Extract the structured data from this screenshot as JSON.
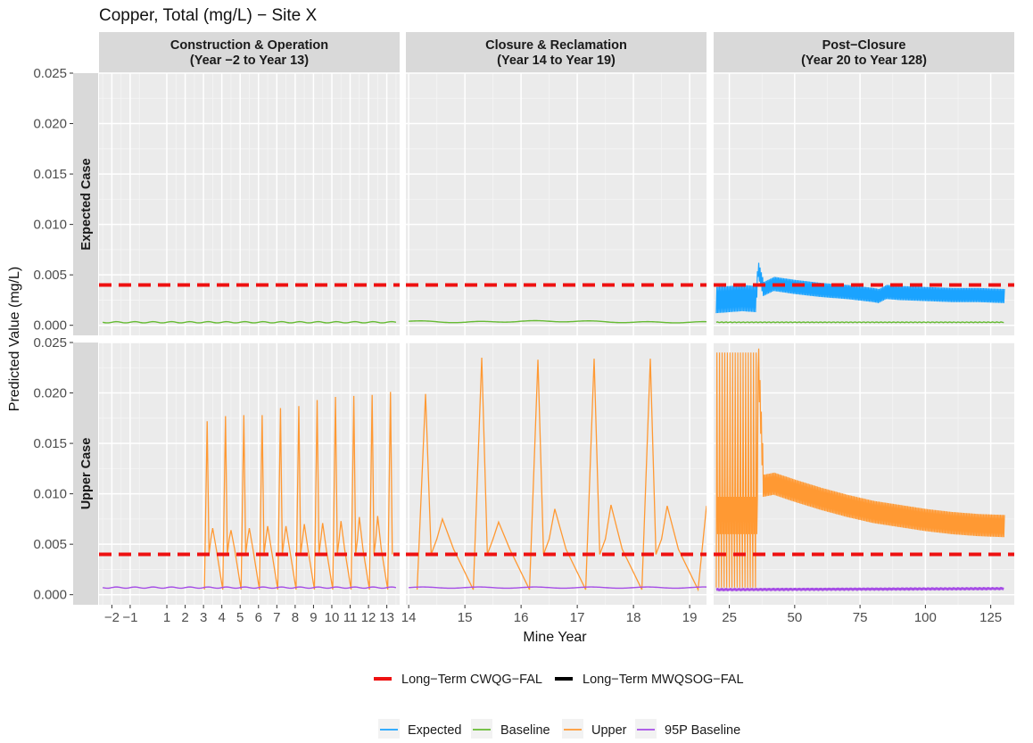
{
  "chart_data": {
    "type": "line",
    "title": "Copper, Total (mg/L) − Site X",
    "xlabel": "Mine Year",
    "ylabel": "Predicted Value (mg/L)",
    "ylim": [
      -0.001,
      0.025
    ],
    "yticks": [
      0.0,
      0.005,
      0.01,
      0.015,
      0.02,
      0.025
    ],
    "ytick_labels": [
      "0.000",
      "0.005",
      "0.010",
      "0.015",
      "0.020",
      "0.025"
    ],
    "grid": true,
    "legend_position": "bottom",
    "facet_columns": [
      {
        "label": "Construction & Operation\n(Year −2 to Year 13)",
        "xlim": [
          -2.7,
          13.7
        ],
        "ticks": [
          -2,
          -1,
          1,
          2,
          3,
          4,
          5,
          6,
          7,
          8,
          9,
          10,
          11,
          12,
          13
        ],
        "tick_labels": [
          "−2",
          "−1",
          "1",
          "2",
          "3",
          "4",
          "5",
          "6",
          "7",
          "8",
          "9",
          "10",
          "11",
          "12",
          "13"
        ],
        "minor_ticks": [
          -2.5,
          -1.5,
          -0.5,
          1.5,
          2.5,
          3.5,
          4.5,
          5.5,
          6.5,
          7.5,
          8.5,
          9.5,
          10.5,
          11.5,
          12.5,
          13.5
        ]
      },
      {
        "label": "Closure & Reclamation\n(Year 14 to Year 19)",
        "xlim": [
          13.95,
          19.3
        ],
        "ticks": [
          14,
          15,
          16,
          17,
          18,
          19
        ],
        "tick_labels": [
          "14",
          "15",
          "16",
          "17",
          "18",
          "19"
        ],
        "minor_ticks": [
          14.5,
          15.5,
          16.5,
          17.5,
          18.5
        ]
      },
      {
        "label": "Post−Closure\n(Year 20 to Year 128)",
        "xlim": [
          19.0,
          134.0
        ],
        "ticks": [
          25,
          50,
          75,
          100,
          125
        ],
        "tick_labels": [
          "25",
          "50",
          "75",
          "100",
          "125"
        ],
        "minor_ticks": [
          37.5,
          62.5,
          87.5,
          112.5
        ]
      }
    ],
    "facet_rows": [
      "Expected Case",
      "Upper Case"
    ],
    "reference_lines": [
      {
        "name": "Long−Term CWQG−FAL",
        "y": 0.004,
        "color": "#ee1111",
        "style": "dashed"
      },
      {
        "name": "Long−Term MWQSOG−FAL",
        "color": "#000000",
        "style": "solid"
      }
    ],
    "series_meta": [
      {
        "name": "Expected",
        "color": "#1aa3ff"
      },
      {
        "name": "Baseline",
        "color": "#66bb33"
      },
      {
        "name": "Upper",
        "color": "#ff9933"
      },
      {
        "name": "95P Baseline",
        "color": "#a64de6"
      }
    ],
    "series": [
      {
        "name": "Baseline",
        "row": 0,
        "col": 0,
        "x": [
          -2.5,
          -1.5,
          -0.5,
          0.5,
          1.5,
          2.5,
          3.5,
          4.5,
          5.5,
          6.5,
          7.5,
          8.5,
          9.5,
          10.5,
          11.5,
          12.5,
          13.5
        ],
        "y": [
          0.0003,
          0.0003,
          0.0003,
          0.0003,
          0.0003,
          0.0003,
          0.0003,
          0.0003,
          0.0003,
          0.0003,
          0.0003,
          0.0003,
          0.0003,
          0.0003,
          0.0003,
          0.0003,
          0.0003
        ]
      },
      {
        "name": "Baseline",
        "row": 0,
        "col": 1,
        "x": [
          14.0,
          15.0,
          16.0,
          17.0,
          18.0,
          19.0,
          19.3
        ],
        "y": [
          0.0004,
          0.0003,
          0.0004,
          0.0004,
          0.0003,
          0.0003,
          0.0003
        ]
      },
      {
        "name": "Baseline",
        "row": 0,
        "col": 2,
        "x": [
          20,
          130
        ],
        "y": [
          0.0003,
          0.0003
        ]
      },
      {
        "name": "Expected",
        "row": 0,
        "col": 2,
        "x": [
          20,
          30,
          35,
          36,
          38,
          42,
          50,
          60,
          70,
          80,
          82,
          85,
          90,
          100,
          110,
          120,
          130
        ],
        "y": [
          0.0025,
          0.0027,
          0.0026,
          0.0055,
          0.0036,
          0.0041,
          0.0038,
          0.0035,
          0.0033,
          0.003,
          0.0029,
          0.0033,
          0.0032,
          0.0031,
          0.003,
          0.003,
          0.0029
        ]
      },
      {
        "name": "Upper",
        "row": 1,
        "col": 0,
        "x": [
          3.2,
          3.5,
          4.2,
          4.5,
          5.2,
          5.5,
          6.2,
          6.5,
          7.2,
          7.5,
          8.2,
          8.5,
          9.2,
          9.5,
          10.2,
          10.5,
          11.2,
          11.5,
          12.2,
          12.5,
          13.2
        ],
        "y": [
          0.0172,
          0.0066,
          0.0177,
          0.0064,
          0.0178,
          0.0066,
          0.0178,
          0.0068,
          0.0185,
          0.0068,
          0.0187,
          0.007,
          0.0193,
          0.0071,
          0.0196,
          0.0073,
          0.0197,
          0.0077,
          0.0198,
          0.0078,
          0.0201
        ]
      },
      {
        "name": "Upper",
        "row": 1,
        "col": 1,
        "x": [
          14.3,
          14.6,
          15.3,
          15.6,
          16.3,
          16.6,
          17.3,
          17.6,
          18.3,
          18.6,
          19.3
        ],
        "y": [
          0.0199,
          0.0075,
          0.0235,
          0.0072,
          0.0233,
          0.0085,
          0.0234,
          0.0089,
          0.0234,
          0.0088,
          0.0088
        ]
      },
      {
        "name": "Upper",
        "row": 1,
        "col": 2,
        "x": [
          20,
          36,
          38,
          42,
          50,
          60,
          70,
          80,
          90,
          100,
          110,
          120,
          130
        ],
        "y": [
          0.024,
          0.024,
          0.0115,
          0.0117,
          0.011,
          0.0102,
          0.0095,
          0.0089,
          0.0085,
          0.0081,
          0.0078,
          0.0076,
          0.0075
        ]
      },
      {
        "name": "95P Baseline",
        "row": 1,
        "col": 0,
        "x": [
          -2.5,
          -1.5,
          -0.5,
          0.5,
          1.5,
          2.5,
          3.5,
          4.5,
          5.5,
          6.5,
          7.5,
          8.5,
          9.5,
          10.5,
          11.5,
          12.5,
          13.5
        ],
        "y": [
          0.0007,
          0.0007,
          0.0007,
          0.0007,
          0.0007,
          0.0007,
          0.0007,
          0.0007,
          0.0007,
          0.0007,
          0.0007,
          0.0007,
          0.0007,
          0.0007,
          0.0007,
          0.0007,
          0.0007
        ]
      },
      {
        "name": "95P Baseline",
        "row": 1,
        "col": 1,
        "x": [
          14.0,
          15.0,
          16.0,
          17.0,
          18.0,
          19.0,
          19.3
        ],
        "y": [
          0.0007,
          0.0007,
          0.0007,
          0.0007,
          0.0007,
          0.0007,
          0.0007
        ]
      },
      {
        "name": "95P Baseline",
        "row": 1,
        "col": 2,
        "x": [
          20,
          130
        ],
        "y": [
          0.0005,
          0.0006
        ]
      }
    ]
  }
}
